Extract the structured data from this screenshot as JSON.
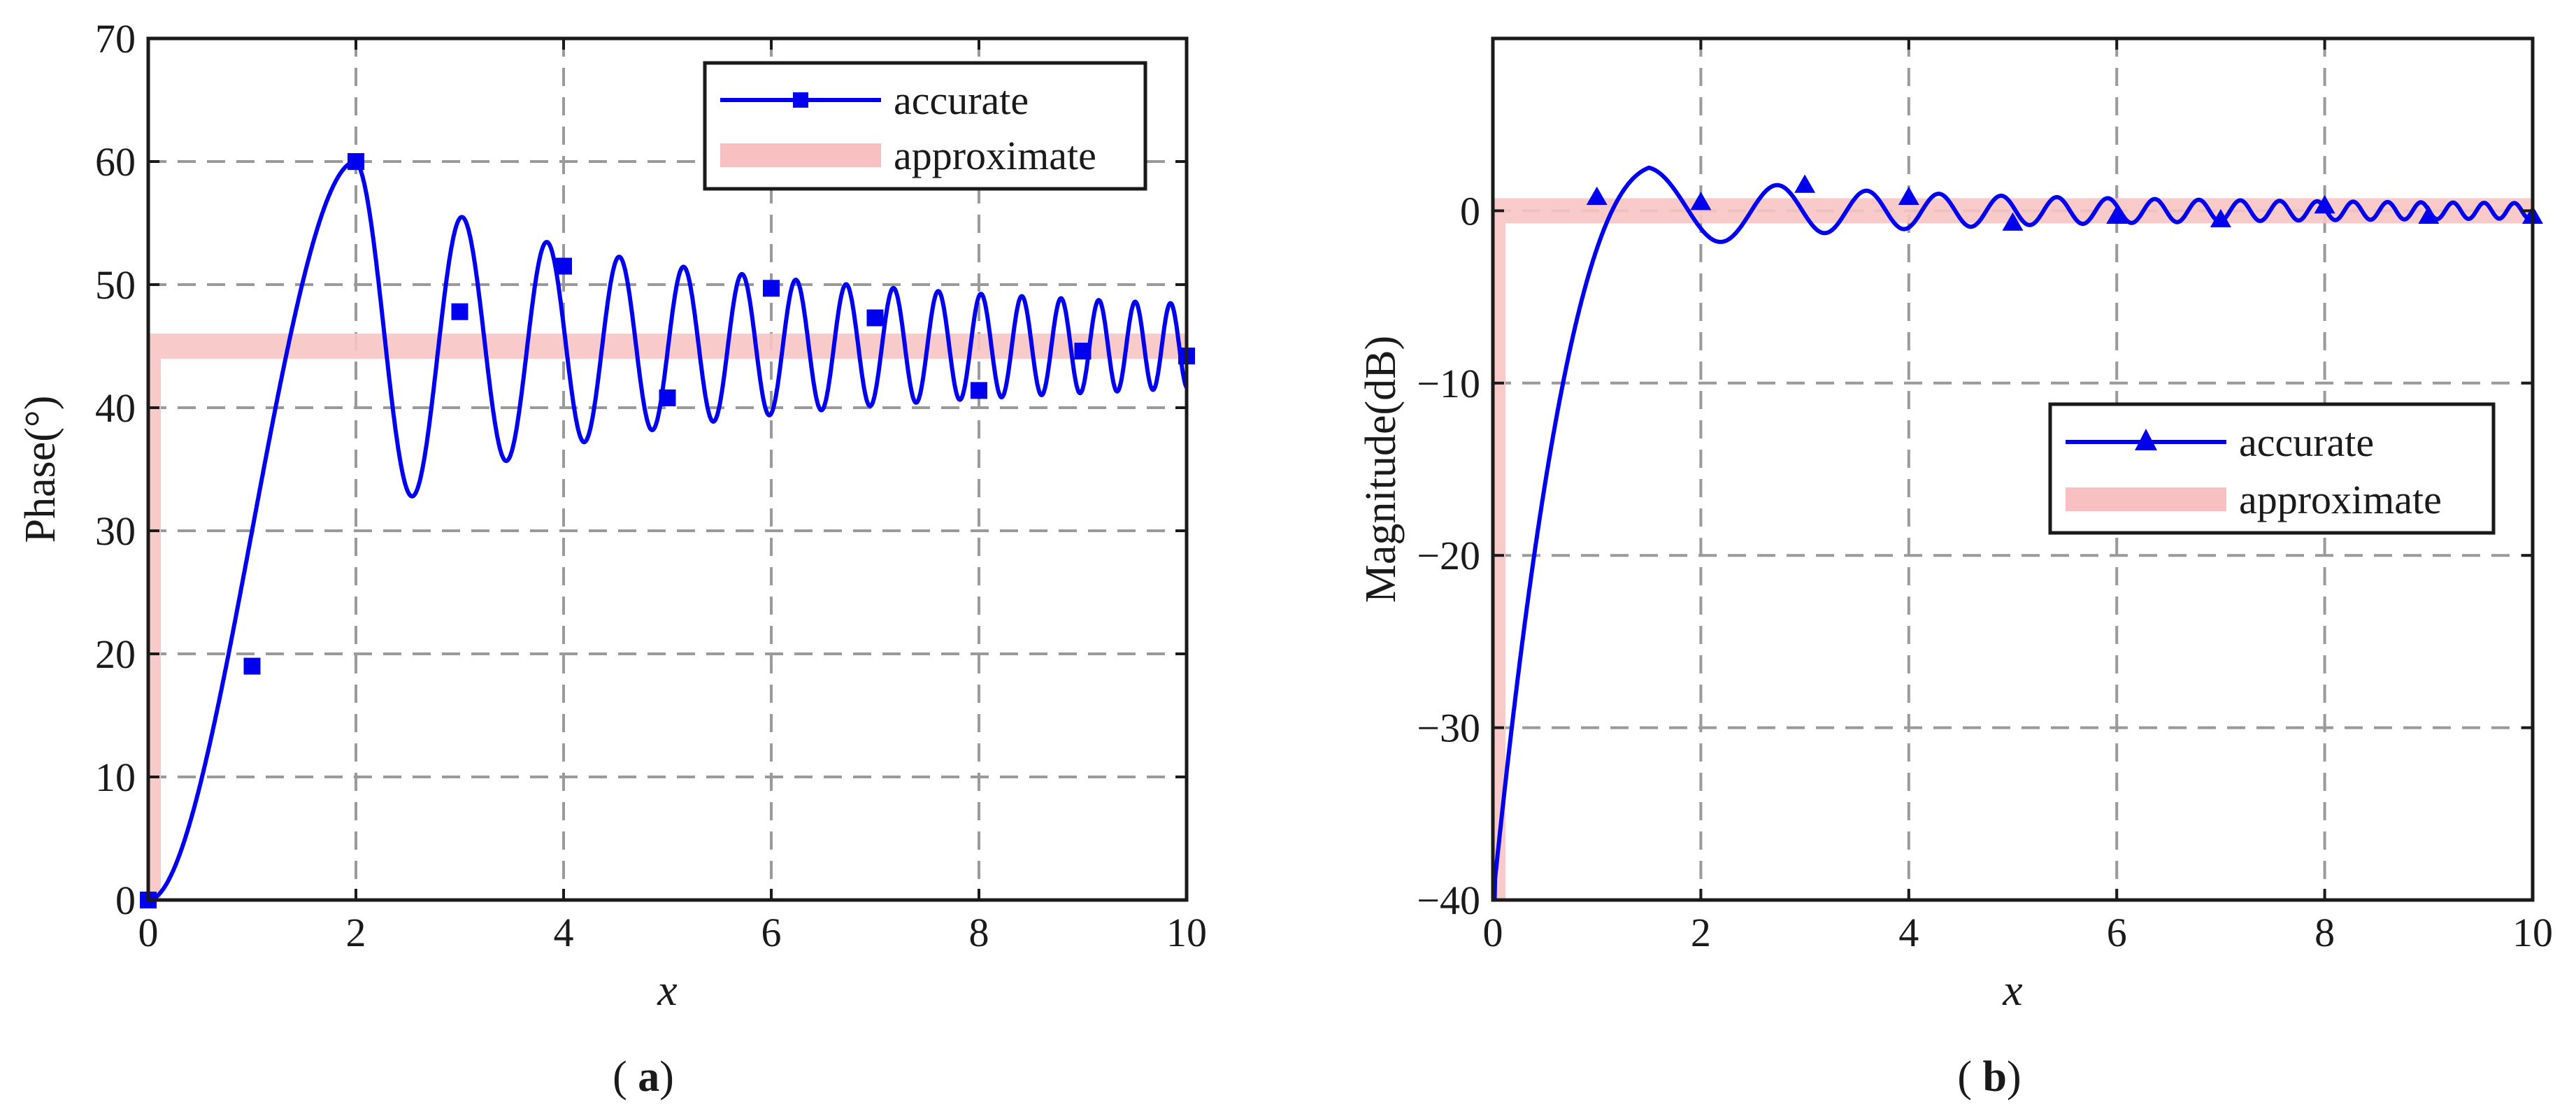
{
  "chart_data": [
    {
      "type": "line",
      "panel_label": "a",
      "xlabel": "x",
      "ylabel": "Phase(°)",
      "xlim": [
        0,
        10
      ],
      "ylim": [
        0,
        70
      ],
      "xticks": [
        "0",
        "2",
        "4",
        "6",
        "8",
        "10"
      ],
      "yticks": [
        "0",
        "10",
        "20",
        "30",
        "40",
        "50",
        "60",
        "70"
      ],
      "grid": true,
      "legend_position": "top-right",
      "series": [
        {
          "name": "accurate",
          "color": "#0000ee",
          "marker": "square",
          "curve": {
            "kind": "phase",
            "base": 45,
            "rise_peak_x": 2,
            "rise_peak_y": 60,
            "amplitude_decay": 0.97,
            "chirp": 0.33
          },
          "markers": [
            [
              0,
              0
            ],
            [
              1,
              19
            ],
            [
              2,
              60
            ],
            [
              3,
              47.8
            ],
            [
              4,
              51.5
            ],
            [
              5,
              40.8
            ],
            [
              6,
              49.7
            ],
            [
              7,
              47.3
            ],
            [
              8,
              41.4
            ],
            [
              9,
              44.6
            ],
            [
              10,
              44.2
            ]
          ]
        },
        {
          "name": "approximate",
          "color": "#f8b8b8",
          "marker": "none",
          "points": [
            [
              0,
              0
            ],
            [
              0,
              45
            ],
            [
              10,
              45
            ]
          ]
        }
      ]
    },
    {
      "type": "line",
      "panel_label": "b",
      "xlabel": "x",
      "ylabel": "Magnitude(dB)",
      "xlim": [
        0,
        10
      ],
      "ylim": [
        -40,
        10
      ],
      "xticks": [
        "0",
        "2",
        "4",
        "6",
        "8",
        "10"
      ],
      "yticks": [
        "−40",
        "−30",
        "−20",
        "−10",
        "0"
      ],
      "ytick_values": [
        -40,
        -30,
        -20,
        -10,
        0
      ],
      "grid": true,
      "legend_position": "center-right",
      "series": [
        {
          "name": "accurate",
          "color": "#0000ee",
          "marker": "triangle",
          "curve": {
            "kind": "magnitude",
            "peak_x": 1.5,
            "peak_y": 2.5,
            "amplitude_decay": 0.8,
            "chirp": 0.33
          },
          "markers": [
            [
              1,
              0.8
            ],
            [
              2,
              0.5
            ],
            [
              3,
              1.5
            ],
            [
              4,
              0.8
            ],
            [
              5,
              -0.7
            ],
            [
              6,
              -0.3
            ],
            [
              7,
              -0.5
            ],
            [
              8,
              0.3
            ],
            [
              9,
              -0.3
            ],
            [
              10,
              -0.3
            ]
          ]
        },
        {
          "name": "approximate",
          "color": "#f8b8b8",
          "marker": "none",
          "points": [
            [
              0,
              -40
            ],
            [
              0,
              0
            ],
            [
              10,
              0
            ]
          ]
        }
      ]
    }
  ],
  "legend": {
    "accurate_label": "accurate",
    "approximate_label": "approximate"
  },
  "captions": {
    "a": "(a)",
    "b": "(b)"
  }
}
